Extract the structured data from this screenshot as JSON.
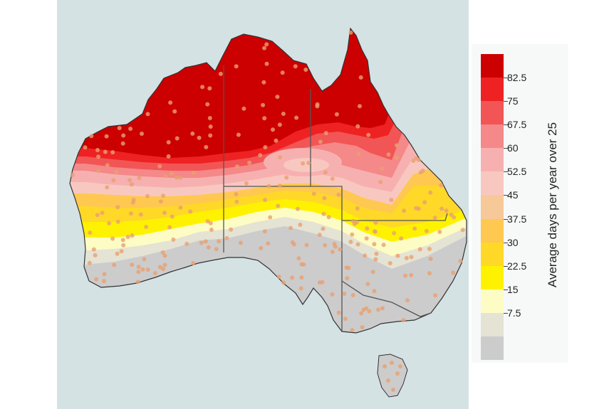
{
  "legend": {
    "title": "Average days per year over 25",
    "ticks": [
      "82.5",
      "75",
      "67.5",
      "60",
      "52.5",
      "45",
      "37.5",
      "30",
      "22.5",
      "15",
      "7.5"
    ],
    "colors": [
      "#cc0000",
      "#ee2222",
      "#f25555",
      "#f58888",
      "#f7b0b0",
      "#f8c8c0",
      "#f7c898",
      "#ffc850",
      "#ffd828",
      "#fff200",
      "#fdfcc4",
      "#e4e3d4",
      "#cccccc"
    ]
  },
  "map": {
    "region": "Australia",
    "background_color": "#d5e2e4",
    "station_color": "#e8a070"
  }
}
